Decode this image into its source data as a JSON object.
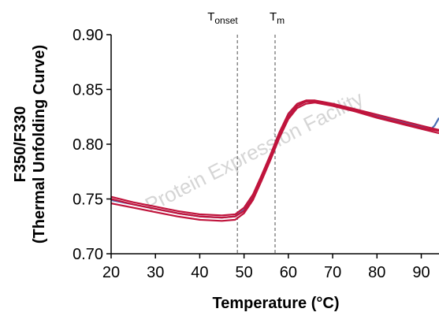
{
  "chart_data": {
    "type": "line",
    "xlabel": "Temperature (°C)",
    "ylabel_line1": "F350/F330",
    "ylabel_line2": "(Thermal Unfolding Curve)",
    "xlim": [
      20,
      94
    ],
    "ylim": [
      0.7,
      0.9
    ],
    "x_ticks": [
      20,
      30,
      40,
      50,
      60,
      70,
      80,
      90
    ],
    "x_tick_labels": [
      "20",
      "30",
      "40",
      "50",
      "60",
      "70",
      "80",
      "90"
    ],
    "y_ticks": [
      0.7,
      0.75,
      0.8,
      0.85,
      0.9
    ],
    "y_tick_labels": [
      "0.70",
      "0.75",
      "0.80",
      "0.85",
      "0.90"
    ],
    "grid": false,
    "markers": [
      {
        "label_main": "T",
        "label_sub": "onset",
        "x": 48.5
      },
      {
        "label_main": "T",
        "label_sub": "m",
        "x": 57
      }
    ],
    "watermark": "Protein Expression Facility",
    "series": [
      {
        "color": "#4a6fb5",
        "points": [
          [
            20,
            0.749
          ],
          [
            25,
            0.745
          ],
          [
            30,
            0.741
          ],
          [
            35,
            0.737
          ],
          [
            40,
            0.734
          ],
          [
            45,
            0.733
          ],
          [
            48,
            0.734
          ],
          [
            50,
            0.74
          ],
          [
            52,
            0.752
          ],
          [
            54,
            0.77
          ],
          [
            56,
            0.789
          ],
          [
            58,
            0.809
          ],
          [
            60,
            0.826
          ],
          [
            62,
            0.835
          ],
          [
            64,
            0.839
          ],
          [
            66,
            0.839
          ],
          [
            70,
            0.836
          ],
          [
            75,
            0.831
          ],
          [
            80,
            0.826
          ],
          [
            85,
            0.821
          ],
          [
            90,
            0.816
          ],
          [
            92,
            0.813
          ],
          [
            93,
            0.817
          ],
          [
            94,
            0.824
          ]
        ]
      },
      {
        "color": "#c0143c",
        "points": [
          [
            20,
            0.752
          ],
          [
            25,
            0.747
          ],
          [
            30,
            0.743
          ],
          [
            35,
            0.739
          ],
          [
            40,
            0.736
          ],
          [
            45,
            0.735
          ],
          [
            48,
            0.736
          ],
          [
            50,
            0.742
          ],
          [
            52,
            0.754
          ],
          [
            54,
            0.772
          ],
          [
            56,
            0.791
          ],
          [
            58,
            0.811
          ],
          [
            60,
            0.828
          ],
          [
            62,
            0.837
          ],
          [
            64,
            0.84
          ],
          [
            66,
            0.84
          ],
          [
            70,
            0.837
          ],
          [
            75,
            0.832
          ],
          [
            80,
            0.827
          ],
          [
            85,
            0.822
          ],
          [
            90,
            0.817
          ],
          [
            94,
            0.813
          ]
        ]
      },
      {
        "color": "#c0143c",
        "points": [
          [
            20,
            0.746
          ],
          [
            25,
            0.742
          ],
          [
            30,
            0.738
          ],
          [
            35,
            0.734
          ],
          [
            40,
            0.731
          ],
          [
            45,
            0.73
          ],
          [
            48,
            0.731
          ],
          [
            50,
            0.737
          ],
          [
            52,
            0.749
          ],
          [
            54,
            0.767
          ],
          [
            56,
            0.786
          ],
          [
            58,
            0.806
          ],
          [
            60,
            0.823
          ],
          [
            62,
            0.833
          ],
          [
            64,
            0.837
          ],
          [
            66,
            0.838
          ],
          [
            70,
            0.835
          ],
          [
            75,
            0.83
          ],
          [
            80,
            0.824
          ],
          [
            85,
            0.819
          ],
          [
            90,
            0.814
          ],
          [
            94,
            0.81
          ]
        ]
      },
      {
        "color": "#c0143c",
        "points": [
          [
            20,
            0.75
          ],
          [
            25,
            0.745
          ],
          [
            30,
            0.741
          ],
          [
            35,
            0.737
          ],
          [
            40,
            0.734
          ],
          [
            45,
            0.733
          ],
          [
            48,
            0.734
          ],
          [
            50,
            0.739
          ],
          [
            52,
            0.751
          ],
          [
            54,
            0.769
          ],
          [
            56,
            0.788
          ],
          [
            58,
            0.808
          ],
          [
            60,
            0.825
          ],
          [
            62,
            0.835
          ],
          [
            64,
            0.839
          ],
          [
            66,
            0.839
          ],
          [
            70,
            0.836
          ],
          [
            75,
            0.831
          ],
          [
            80,
            0.825
          ],
          [
            85,
            0.82
          ],
          [
            90,
            0.815
          ],
          [
            94,
            0.812
          ]
        ]
      }
    ]
  }
}
